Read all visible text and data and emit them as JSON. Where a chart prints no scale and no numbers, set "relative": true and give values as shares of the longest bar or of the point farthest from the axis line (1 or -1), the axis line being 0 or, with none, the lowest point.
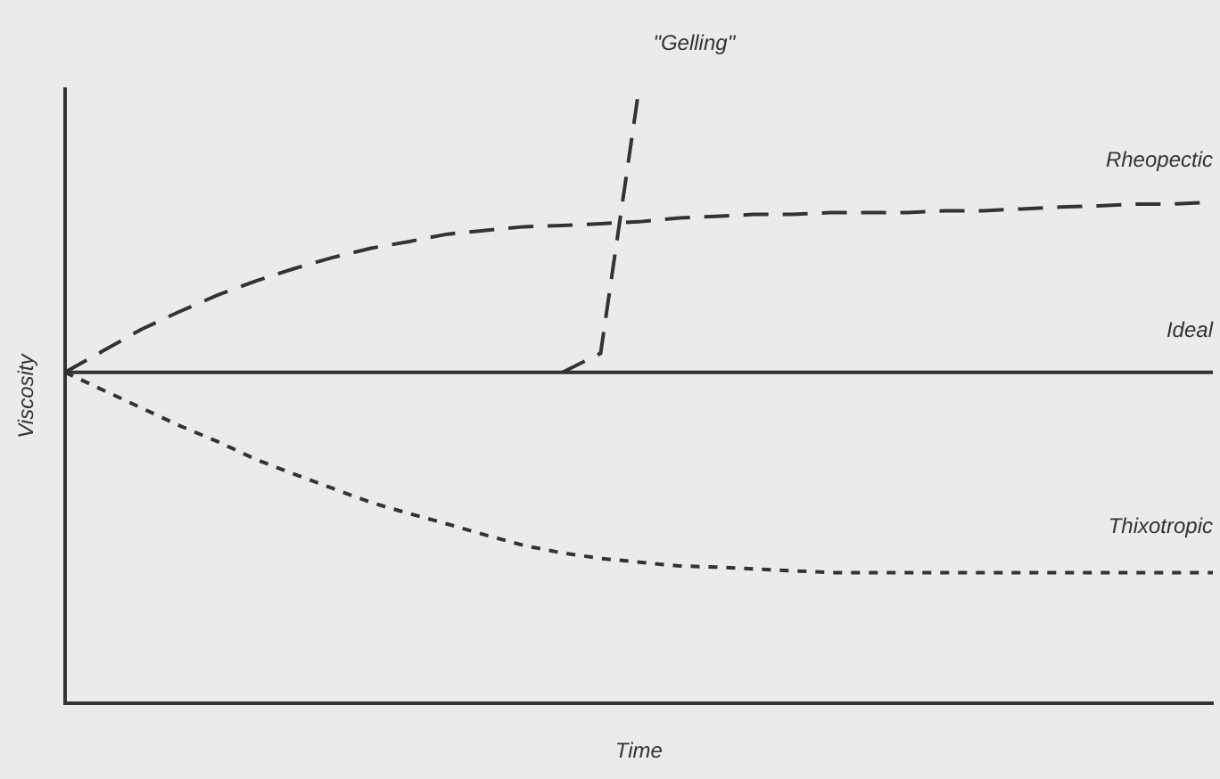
{
  "chart_data": {
    "type": "line",
    "relative": true,
    "xlabel": "Time",
    "ylabel": "Viscosity",
    "grid": false,
    "legend": false,
    "marker": "none",
    "tick_labels": false,
    "categories": [
      null,
      null,
      null,
      null,
      null,
      null,
      null,
      null,
      null,
      null,
      null,
      null,
      null,
      null,
      null,
      null,
      null,
      null,
      null,
      null,
      null,
      null,
      null,
      null,
      null,
      null,
      null,
      null,
      null,
      null,
      null
    ],
    "series": [
      {
        "name": "Rheopectic",
        "color": "#333333",
        "line_style": "dashed",
        "values": [
          0.539,
          0.574,
          0.609,
          0.638,
          0.665,
          0.688,
          0.708,
          0.726,
          0.741,
          0.752,
          0.764,
          0.77,
          0.776,
          0.778,
          0.781,
          0.784,
          0.79,
          0.793,
          0.796,
          0.796,
          0.799,
          0.799,
          0.799,
          0.802,
          0.802,
          0.805,
          0.808,
          0.81,
          0.813,
          0.813,
          0.816
        ]
      },
      {
        "name": "Ideal",
        "color": "#333333",
        "line_style": "solid",
        "values": [
          0.539,
          0.539,
          0.539,
          0.539,
          0.539,
          0.539,
          0.539,
          0.539,
          0.539,
          0.539,
          0.539,
          0.539,
          0.539,
          0.539,
          0.539,
          0.539,
          0.539,
          0.539,
          0.539,
          0.539,
          0.539,
          0.539,
          0.539,
          0.539,
          0.539,
          0.539,
          0.539,
          0.539,
          0.539,
          0.539,
          0.539
        ]
      },
      {
        "name": "Thixotropic",
        "color": "#333333",
        "line_style": "dotted",
        "values": [
          0.539,
          0.51,
          0.481,
          0.452,
          0.426,
          0.397,
          0.373,
          0.35,
          0.327,
          0.309,
          0.292,
          0.274,
          0.257,
          0.245,
          0.236,
          0.23,
          0.224,
          0.222,
          0.219,
          0.216,
          0.213,
          0.213,
          0.213,
          0.213,
          0.213,
          0.213,
          0.213,
          0.213,
          0.213,
          0.213,
          0.213
        ]
      },
      {
        "name": "\"Gelling\"",
        "color": "#333333",
        "line_style": "dashed",
        "values": [
          null,
          null,
          null,
          null,
          null,
          null,
          null,
          null,
          null,
          null,
          null,
          null,
          null,
          0.539,
          0.57,
          1,
          null,
          null,
          null,
          null,
          null,
          null,
          null,
          null,
          null,
          null,
          null,
          null,
          null,
          null,
          null
        ]
      }
    ]
  }
}
